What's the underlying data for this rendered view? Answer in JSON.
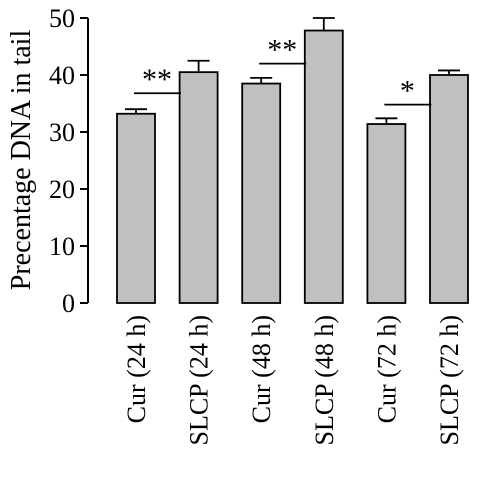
{
  "chart_data": {
    "type": "bar",
    "title": "",
    "xlabel": "",
    "ylabel": "Precentage DNA in tail",
    "ylim": [
      0,
      50
    ],
    "yticks": [
      0,
      10,
      20,
      30,
      40,
      50
    ],
    "grid": false,
    "categories": [
      "Cur (24 h)",
      "SLCP (24 h)",
      "Cur (48 h)",
      "SLCP (48 h)",
      "Cur (72 h)",
      "SLCP (72 h)"
    ],
    "values": [
      33.2,
      40.5,
      38.5,
      47.8,
      31.4,
      40.0
    ],
    "errors": [
      0.8,
      2.0,
      1.0,
      2.2,
      1.0,
      0.8
    ],
    "bar_color": "#c0c0c0",
    "significance": [
      {
        "label": "**",
        "between": [
          0,
          1
        ],
        "y": 36.8
      },
      {
        "label": "**",
        "between": [
          2,
          3
        ],
        "y": 42.0
      },
      {
        "label": "*",
        "between": [
          4,
          5
        ],
        "y": 34.8
      }
    ]
  }
}
